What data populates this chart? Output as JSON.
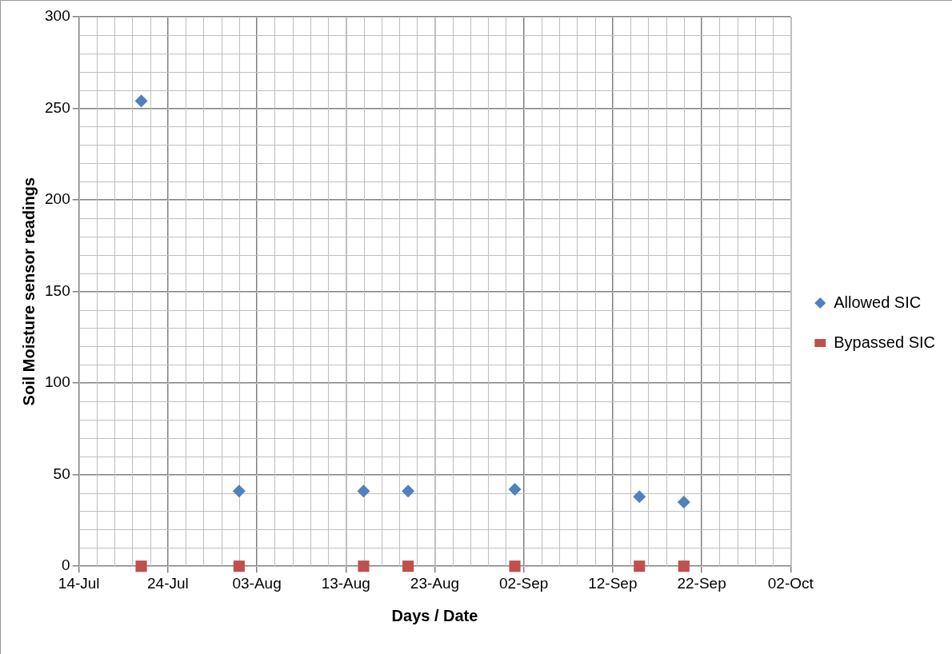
{
  "chart_data": {
    "type": "scatter",
    "xlabel": "Days / Date",
    "ylabel": "Soil Moisture sensor readings",
    "x": [
      "--07-21",
      "--08-01",
      "--08-15",
      "--08-20",
      "--09-01",
      "--09-15",
      "--09-20"
    ],
    "series": [
      {
        "name": "Allowed SIC",
        "color": "#4f81bd",
        "marker": "diamond",
        "values": [
          254,
          41,
          41,
          41,
          42,
          38,
          35
        ]
      },
      {
        "name": "Bypassed SIC",
        "color": "#c0504d",
        "marker": "square",
        "values": [
          0,
          0,
          0,
          0,
          0,
          0,
          0
        ]
      }
    ],
    "xlim": [
      "--07-14",
      "--10-02"
    ],
    "xticks": [
      {
        "value": "--07-14",
        "label": "14-Jul"
      },
      {
        "value": "--07-24",
        "label": "24-Jul"
      },
      {
        "value": "--08-03",
        "label": "03-Aug"
      },
      {
        "value": "--08-13",
        "label": "13-Aug"
      },
      {
        "value": "--08-23",
        "label": "23-Aug"
      },
      {
        "value": "--09-02",
        "label": "02-Sep"
      },
      {
        "value": "--09-12",
        "label": "12-Sep"
      },
      {
        "value": "--09-22",
        "label": "22-Sep"
      },
      {
        "value": "--10-02",
        "label": "02-Oct"
      }
    ],
    "ylim": [
      0,
      300
    ],
    "yticks": [
      0,
      50,
      100,
      150,
      200,
      250,
      300
    ],
    "grid": true,
    "legend": "right"
  }
}
